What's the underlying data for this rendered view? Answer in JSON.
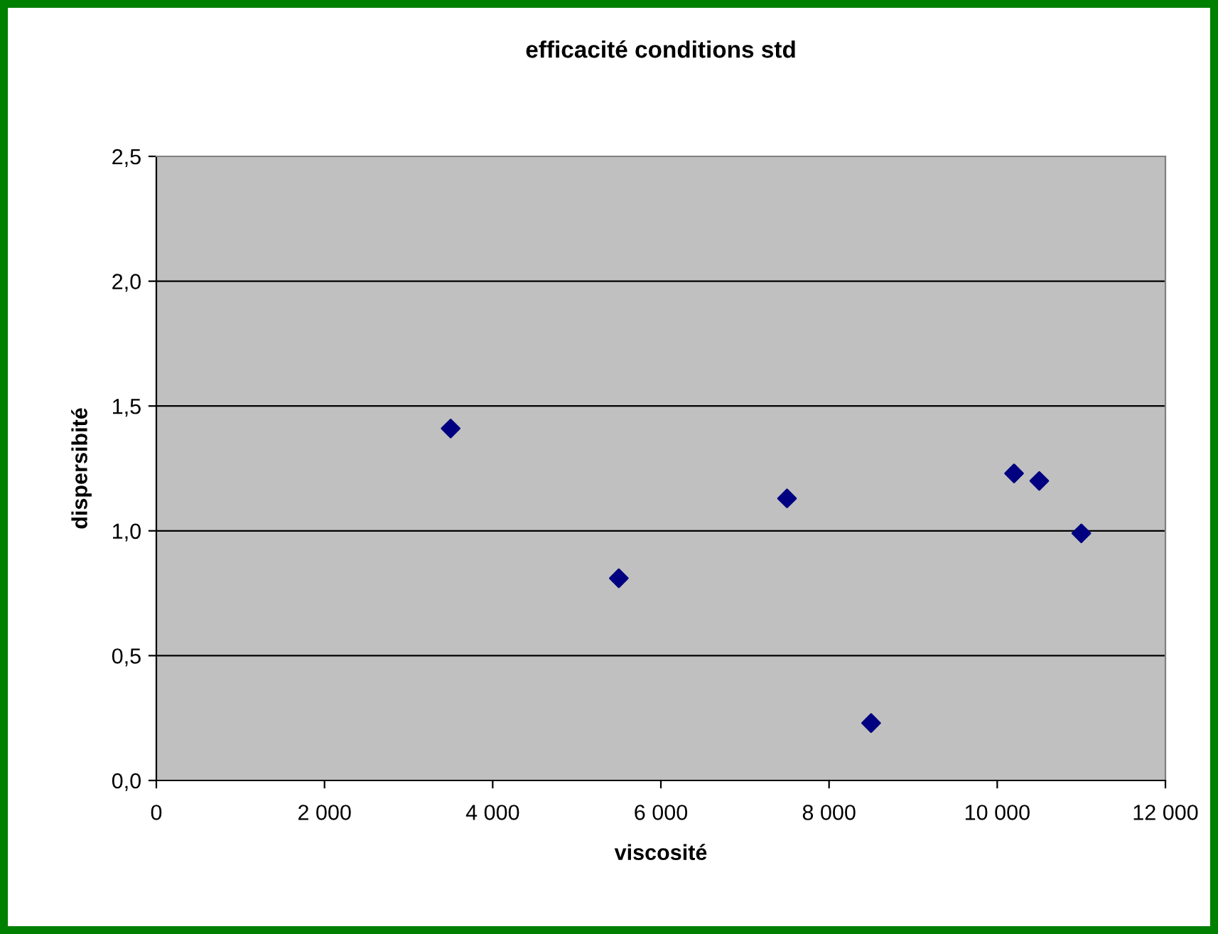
{
  "chart_data": {
    "type": "scatter",
    "title": "efficacité conditions std",
    "xlabel": "viscosité",
    "ylabel": "dispersibité",
    "x": [
      3500,
      5500,
      7500,
      8500,
      10200,
      10500,
      11000
    ],
    "values": [
      1.41,
      0.81,
      1.13,
      0.23,
      1.23,
      1.2,
      0.99
    ],
    "color": "#000080",
    "marker": "diamond",
    "xlim": [
      0,
      12000
    ],
    "xticks": [
      {
        "value": 0,
        "label": "0"
      },
      {
        "value": 2000,
        "label": "2 000"
      },
      {
        "value": 4000,
        "label": "4 000"
      },
      {
        "value": 6000,
        "label": "6 000"
      },
      {
        "value": 8000,
        "label": "8 000"
      },
      {
        "value": 10000,
        "label": "10 000"
      },
      {
        "value": 12000,
        "label": "12 000"
      }
    ],
    "ylim": [
      0,
      2.5
    ],
    "yticks": [
      {
        "value": 0,
        "label": "0,0"
      },
      {
        "value": 0.5,
        "label": "0,5"
      },
      {
        "value": 1.0,
        "label": "1,0"
      },
      {
        "value": 1.5,
        "label": "1,5"
      },
      {
        "value": 2.0,
        "label": "2,0"
      },
      {
        "value": 2.5,
        "label": "2,5"
      }
    ],
    "grid": "y",
    "legend": false
  }
}
